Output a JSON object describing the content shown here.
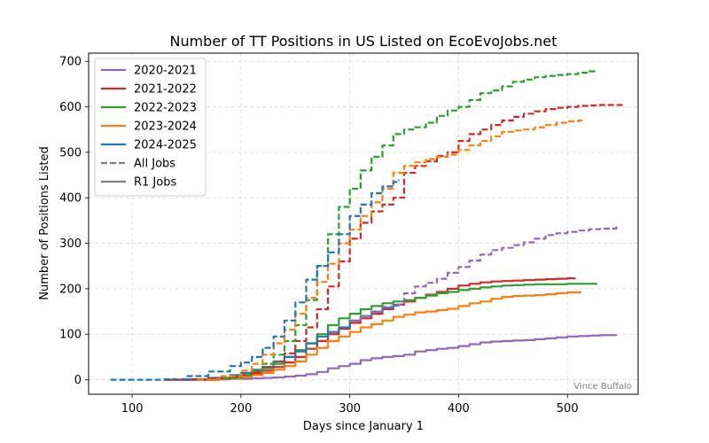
{
  "chart_data": {
    "type": "line",
    "title": "Number of TT Positions in US Listed on EcoEvoJobs.net",
    "xlabel": "Days since January 1",
    "ylabel": "Number of Positions Listed",
    "xlim": [
      60,
      565
    ],
    "ylim": [
      -32,
      718
    ],
    "xticks": [
      100,
      200,
      300,
      400,
      500
    ],
    "yticks": [
      0,
      100,
      200,
      300,
      400,
      500,
      600,
      700
    ],
    "grid": true,
    "legend_position": "top-left",
    "credit": "Vince Buffalo",
    "colors": {
      "2020-2021": "#9467bd",
      "2021-2022": "#d62728",
      "2022-2023": "#2ca02c",
      "2023-2024": "#ff7f0e",
      "2024-2025": "#1f77b4",
      "neutral": "#808080"
    },
    "legend": [
      {
        "label": "2020-2021",
        "color": "#9467bd",
        "style": "solid"
      },
      {
        "label": "2021-2022",
        "color": "#d62728",
        "style": "solid"
      },
      {
        "label": "2022-2023",
        "color": "#2ca02c",
        "style": "solid"
      },
      {
        "label": "2023-2024",
        "color": "#ff7f0e",
        "style": "solid"
      },
      {
        "label": "2024-2025",
        "color": "#1f77b4",
        "style": "solid"
      },
      {
        "label": "All Jobs",
        "color": "#808080",
        "style": "dashed"
      },
      {
        "label": "R1 Jobs",
        "color": "#808080",
        "style": "solid"
      }
    ],
    "series": [
      {
        "season": "2020-2021",
        "kind": "all",
        "color": "#9467bd",
        "x": [
          300,
          310,
          320,
          330,
          340,
          350,
          360,
          370,
          380,
          390,
          400,
          410,
          420,
          430,
          440,
          450,
          460,
          470,
          480,
          490,
          500,
          510,
          520,
          530,
          545
        ],
        "y": [
          130,
          140,
          150,
          160,
          165,
          190,
          205,
          213,
          222,
          235,
          248,
          262,
          275,
          285,
          290,
          296,
          302,
          310,
          318,
          322,
          325,
          328,
          331,
          332,
          338
        ]
      },
      {
        "season": "2020-2021",
        "kind": "r1",
        "color": "#9467bd",
        "x": [
          150,
          170,
          190,
          210,
          220,
          230,
          240,
          250,
          260,
          270,
          280,
          290,
          300,
          310,
          320,
          330,
          340,
          350,
          360,
          370,
          380,
          390,
          400,
          410,
          420,
          430,
          440,
          450,
          460,
          470,
          480,
          490,
          500,
          510,
          520,
          530,
          545
        ],
        "y": [
          0,
          1,
          2,
          3,
          4,
          5,
          7,
          9,
          12,
          17,
          25,
          30,
          35,
          43,
          47,
          50,
          52,
          55,
          62,
          65,
          68,
          70,
          74,
          78,
          82,
          84,
          85,
          86,
          87,
          89,
          91,
          93,
          95,
          96,
          97,
          98,
          100
        ]
      },
      {
        "season": "2021-2022",
        "kind": "all",
        "color": "#d62728",
        "x": [
          130,
          150,
          170,
          190,
          200,
          210,
          220,
          230,
          240,
          250,
          260,
          270,
          280,
          290,
          300,
          310,
          320,
          330,
          340,
          350,
          360,
          370,
          380,
          390,
          400,
          410,
          420,
          430,
          440,
          450,
          460,
          470,
          480,
          490,
          500,
          510,
          520,
          530,
          550
        ],
        "y": [
          0,
          1,
          3,
          6,
          10,
          18,
          28,
          40,
          58,
          85,
          115,
          155,
          205,
          260,
          310,
          345,
          370,
          385,
          400,
          455,
          470,
          480,
          492,
          500,
          525,
          540,
          550,
          560,
          570,
          578,
          585,
          590,
          595,
          598,
          600,
          602,
          603,
          604,
          606
        ]
      },
      {
        "season": "2021-2022",
        "kind": "r1",
        "color": "#d62728",
        "x": [
          130,
          150,
          170,
          190,
          200,
          210,
          220,
          230,
          240,
          250,
          260,
          270,
          280,
          290,
          300,
          310,
          320,
          330,
          340,
          350,
          360,
          370,
          380,
          390,
          400,
          410,
          420,
          430,
          440,
          450,
          460,
          470,
          480,
          490,
          500,
          507
        ],
        "y": [
          0,
          1,
          2,
          4,
          8,
          14,
          20,
          28,
          38,
          50,
          68,
          85,
          100,
          112,
          125,
          135,
          145,
          155,
          165,
          172,
          180,
          187,
          193,
          200,
          207,
          211,
          214,
          216,
          217,
          218,
          219,
          220,
          221,
          222,
          223,
          224
        ]
      },
      {
        "season": "2022-2023",
        "kind": "all",
        "color": "#2ca02c",
        "x": [
          160,
          180,
          200,
          210,
          220,
          230,
          240,
          250,
          260,
          270,
          280,
          290,
          300,
          310,
          320,
          330,
          340,
          350,
          360,
          370,
          380,
          390,
          400,
          410,
          420,
          430,
          440,
          450,
          460,
          470,
          480,
          490,
          500,
          510,
          520,
          527
        ],
        "y": [
          0,
          3,
          10,
          20,
          35,
          55,
          85,
          120,
          175,
          250,
          320,
          380,
          420,
          460,
          490,
          515,
          540,
          550,
          555,
          565,
          580,
          592,
          600,
          615,
          630,
          636,
          645,
          655,
          660,
          665,
          668,
          670,
          672,
          675,
          678,
          679
        ]
      },
      {
        "season": "2022-2023",
        "kind": "r1",
        "color": "#2ca02c",
        "x": [
          160,
          180,
          200,
          210,
          220,
          230,
          240,
          250,
          260,
          270,
          280,
          290,
          300,
          310,
          320,
          330,
          340,
          350,
          360,
          370,
          380,
          390,
          400,
          410,
          420,
          430,
          440,
          450,
          460,
          470,
          480,
          490,
          500,
          510,
          520,
          527
        ],
        "y": [
          0,
          3,
          10,
          18,
          25,
          35,
          50,
          65,
          80,
          100,
          120,
          135,
          145,
          155,
          162,
          168,
          172,
          175,
          180,
          185,
          190,
          193,
          197,
          200,
          203,
          205,
          207,
          208,
          209,
          210,
          210,
          210,
          211,
          211,
          211,
          212
        ]
      },
      {
        "season": "2023-2024",
        "kind": "all",
        "color": "#ff7f0e",
        "x": [
          160,
          180,
          200,
          210,
          220,
          230,
          240,
          250,
          260,
          270,
          280,
          290,
          300,
          310,
          320,
          330,
          340,
          350,
          360,
          370,
          380,
          390,
          400,
          410,
          420,
          430,
          440,
          450,
          460,
          470,
          480,
          490,
          500,
          510,
          515
        ],
        "y": [
          0,
          8,
          20,
          35,
          55,
          80,
          110,
          145,
          180,
          215,
          255,
          300,
          330,
          360,
          390,
          420,
          455,
          470,
          478,
          485,
          490,
          495,
          505,
          515,
          525,
          535,
          545,
          548,
          550,
          555,
          560,
          565,
          568,
          570,
          572
        ]
      },
      {
        "season": "2023-2024",
        "kind": "r1",
        "color": "#ff7f0e",
        "x": [
          170,
          180,
          200,
          210,
          220,
          230,
          240,
          250,
          260,
          270,
          280,
          290,
          300,
          310,
          320,
          330,
          340,
          350,
          360,
          370,
          380,
          390,
          400,
          410,
          420,
          430,
          440,
          450,
          460,
          470,
          480,
          490,
          500,
          512
        ],
        "y": [
          0,
          2,
          6,
          10,
          15,
          22,
          30,
          40,
          55,
          70,
          85,
          95,
          105,
          115,
          122,
          130,
          138,
          143,
          148,
          150,
          153,
          156,
          162,
          168,
          172,
          178,
          182,
          184,
          185,
          186,
          188,
          190,
          192,
          195
        ]
      },
      {
        "season": "2024-2025",
        "kind": "all",
        "color": "#1f77b4",
        "x": [
          80,
          100,
          130,
          150,
          170,
          190,
          200,
          210,
          220,
          230,
          240,
          250,
          260,
          270,
          280,
          290,
          300,
          310,
          320,
          330,
          340,
          345
        ],
        "y": [
          0,
          0,
          1,
          8,
          18,
          30,
          38,
          50,
          70,
          95,
          130,
          170,
          220,
          250,
          280,
          320,
          360,
          385,
          410,
          425,
          435,
          440
        ]
      },
      {
        "season": "2024-2025",
        "kind": "r1",
        "color": "#1f77b4",
        "x": [
          150,
          170,
          190,
          200,
          210,
          220,
          230,
          240,
          250,
          260,
          270,
          280,
          290,
          300,
          310,
          320,
          330,
          340,
          345
        ],
        "y": [
          0,
          4,
          10,
          15,
          22,
          28,
          40,
          50,
          62,
          80,
          95,
          105,
          115,
          130,
          140,
          150,
          158,
          163,
          165
        ]
      }
    ]
  }
}
